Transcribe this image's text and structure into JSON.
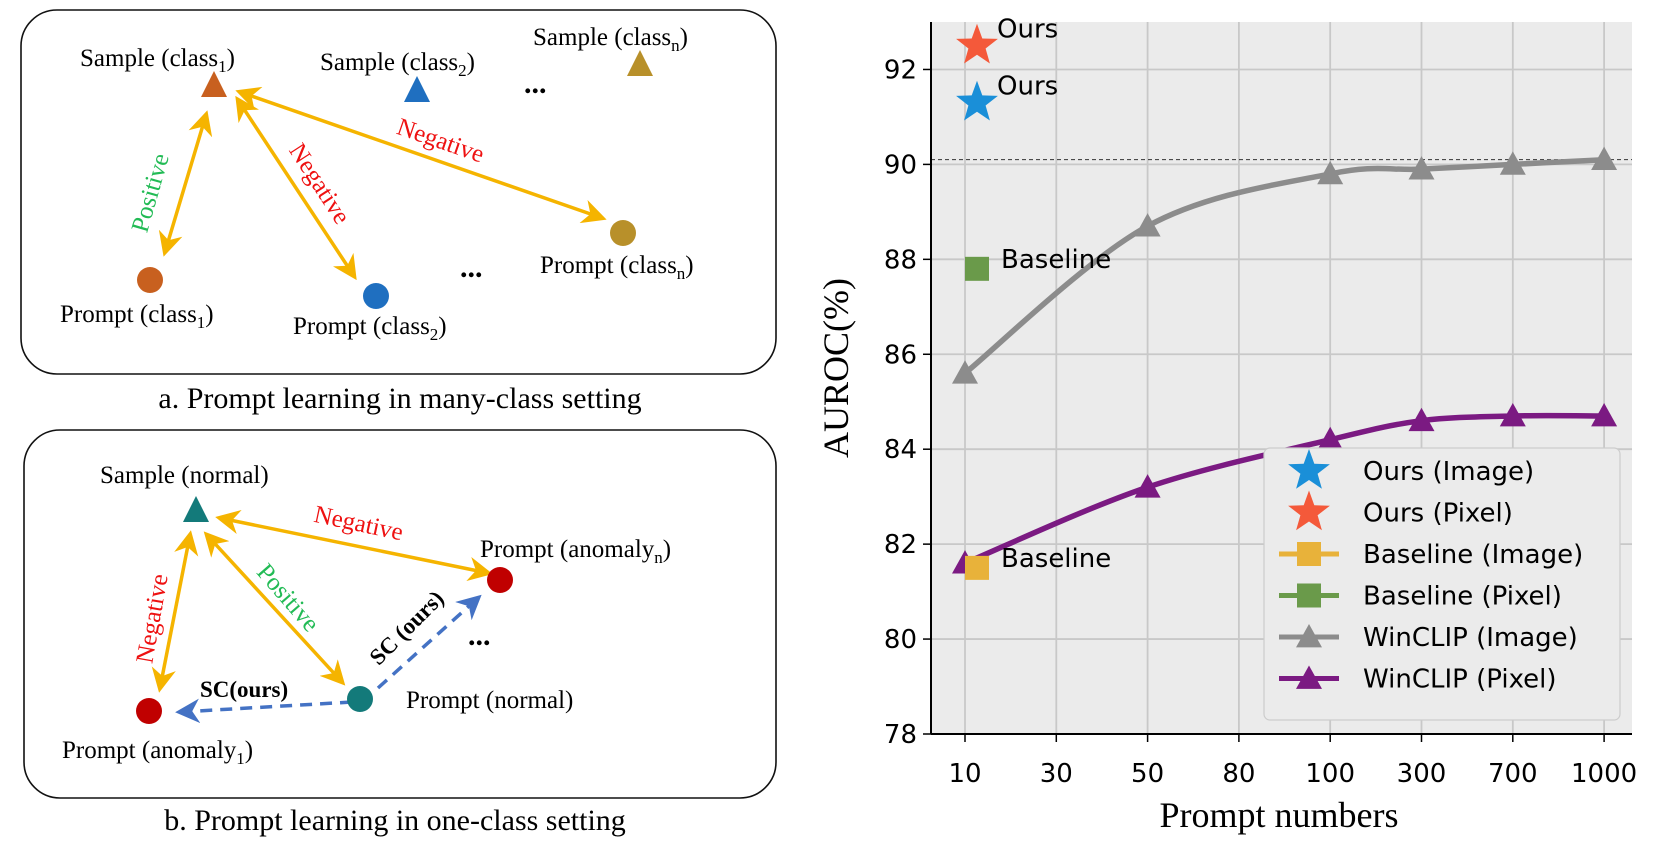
{
  "panel_a": {
    "caption": "a. Prompt learning in many-class setting",
    "samples": [
      {
        "base": "Sample (class",
        "sub": "1",
        "tail": ")",
        "color": "#c8601f"
      },
      {
        "base": "Sample (class",
        "sub": "2",
        "tail": ")",
        "color": "#1f6fc0"
      },
      {
        "base": "Sample (class",
        "sub": "n",
        "tail": ")",
        "color": "#b8902a"
      }
    ],
    "prompts": [
      {
        "base": "Prompt (class",
        "sub": "1",
        "tail": ")",
        "color": "#c8601f"
      },
      {
        "base": "Prompt (class",
        "sub": "2",
        "tail": ")",
        "color": "#1f6fc0"
      },
      {
        "base": "Prompt (class",
        "sub": "n",
        "tail": ")",
        "color": "#b8902a"
      }
    ],
    "edges": {
      "positive": "Positive",
      "negative_1": "Negative",
      "negative_2": "Negative"
    },
    "ellipsis": "..."
  },
  "panel_b": {
    "caption": "b. Prompt learning in one-class setting",
    "sample": {
      "label": "Sample (normal)",
      "color": "#137a7a"
    },
    "prompt_anomaly_1": {
      "base": "Prompt (anomaly",
      "sub": "1",
      "tail": ")",
      "color": "#c00000"
    },
    "prompt_anomaly_n": {
      "base": "Prompt (anomaly",
      "sub": "n",
      "tail": ")",
      "color": "#c00000"
    },
    "prompt_normal": {
      "label": "Prompt (normal)",
      "color": "#137a7a"
    },
    "edges": {
      "negative_left": "Negative",
      "negative_top": "Negative",
      "positive": "Positive",
      "sc_1": "SC(ours)",
      "sc_n": "SC (ours)"
    },
    "ellipsis": "..."
  },
  "colors": {
    "arrow": "#f5b400",
    "positive": "#22bb55",
    "negative": "#ee1111",
    "sc": "#4472c4"
  },
  "chart_data": {
    "type": "line",
    "xlabel": "Prompt numbers",
    "ylabel": "AUROC(%)",
    "categories": [
      "10",
      "30",
      "50",
      "80",
      "100",
      "300",
      "700",
      "1000"
    ],
    "ylim": [
      78,
      93
    ],
    "yticks": [
      78,
      80,
      82,
      84,
      86,
      88,
      90,
      92
    ],
    "reference_line": 90.1,
    "grid": true,
    "legend_position": "lower right",
    "series": [
      {
        "name": "WinCLIP (Image)",
        "color": "#8c8c8c",
        "marker": "triangle",
        "points": [
          {
            "x": "10",
            "y": 85.6
          },
          {
            "x": "50",
            "y": 88.7
          },
          {
            "x": "100",
            "y": 89.8
          },
          {
            "x": "300",
            "y": 89.9
          },
          {
            "x": "700",
            "y": 90.0
          },
          {
            "x": "1000",
            "y": 90.1
          }
        ]
      },
      {
        "name": "WinCLIP (Pixel)",
        "color": "#7b1a82",
        "marker": "triangle",
        "points": [
          {
            "x": "10",
            "y": 81.6
          },
          {
            "x": "50",
            "y": 83.2
          },
          {
            "x": "100",
            "y": 84.2
          },
          {
            "x": "300",
            "y": 84.6
          },
          {
            "x": "700",
            "y": 84.7
          },
          {
            "x": "1000",
            "y": 84.7
          }
        ]
      }
    ],
    "single_points": [
      {
        "name": "Ours (Image)",
        "color": "#1a8fd8",
        "marker": "star",
        "x": "10",
        "y": 91.3,
        "annotation": "Ours"
      },
      {
        "name": "Ours (Pixel)",
        "color": "#f4593a",
        "marker": "star",
        "x": "10",
        "y": 92.5,
        "annotation": "Ours"
      },
      {
        "name": "Baseline (Image)",
        "color": "#e8b23a",
        "marker": "square",
        "x": "10",
        "y": 81.5,
        "annotation": "Baseline"
      },
      {
        "name": "Baseline (Pixel)",
        "color": "#6a9a4a",
        "marker": "square",
        "x": "10",
        "y": 87.8,
        "annotation": "Baseline"
      }
    ],
    "legend": [
      "Ours (Image)",
      "Ours (Pixel)",
      "Baseline (Image)",
      "Baseline (Pixel)",
      "WinCLIP (Image)",
      "WinCLIP (Pixel)"
    ]
  }
}
